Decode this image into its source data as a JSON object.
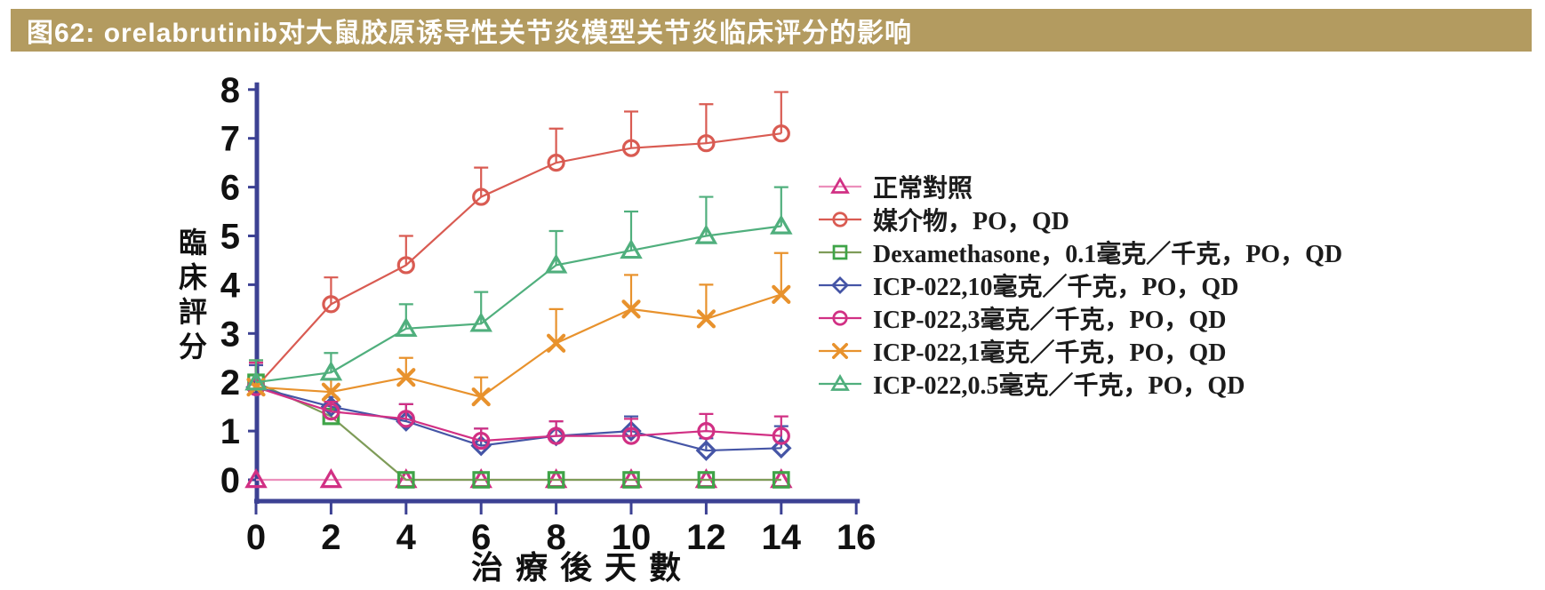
{
  "figure": {
    "title": "图62:  orelabrutinib对大鼠胶原诱导性关节炎模型关节炎临床评分的影响",
    "title_bar_color": "#B39B60",
    "title_text_color": "#FFFFFF"
  },
  "chart_data": {
    "type": "line",
    "x": [
      0,
      2,
      4,
      6,
      8,
      10,
      12,
      14
    ],
    "xlabel": "治療後天數",
    "ylabel": "臨床評分",
    "xlim": [
      0,
      16
    ],
    "ylim": [
      0,
      8
    ],
    "x_ticks": [
      0,
      2,
      4,
      6,
      8,
      10,
      12,
      14,
      16
    ],
    "y_ticks": [
      0,
      1,
      2,
      3,
      4,
      5,
      6,
      7,
      8
    ],
    "grid": false,
    "legend_position": "right",
    "error_bars": "upper-only",
    "axis_color": "#3C4193",
    "tick_label_color": "#111111",
    "series": [
      {
        "name": "正常對照",
        "marker": "triangle-open",
        "color": "#D13084",
        "line_color": "#EC8FBC",
        "values": [
          0,
          0,
          0,
          0,
          0,
          0,
          0,
          0
        ],
        "err_up": [
          0,
          0,
          0,
          0,
          0,
          0,
          0,
          0
        ]
      },
      {
        "name": "媒介物，PO，QD",
        "marker": "circle-open",
        "color": "#D95B52",
        "line_color": "#D95B52",
        "values": [
          1.9,
          3.6,
          4.4,
          5.8,
          6.5,
          6.8,
          6.9,
          7.1
        ],
        "err_up": [
          0.5,
          0.55,
          0.6,
          0.6,
          0.7,
          0.75,
          0.8,
          0.85
        ]
      },
      {
        "name": "Dexamethasone，0.1毫克／千克，PO，QD",
        "marker": "square-open",
        "color": "#3FA448",
        "line_color": "#7E9C58",
        "values": [
          2.0,
          1.3,
          0,
          0,
          0,
          0,
          0,
          0
        ],
        "err_up": [
          0.45,
          0,
          0,
          0,
          0,
          0,
          0,
          0
        ]
      },
      {
        "name": "ICP-022,10毫克／千克，PO，QD",
        "marker": "diamond-open",
        "color": "#4555A6",
        "line_color": "#4555A6",
        "values": [
          1.9,
          1.5,
          1.2,
          0.7,
          0.9,
          1.0,
          0.6,
          0.65
        ],
        "err_up": [
          0.45,
          0.2,
          0.35,
          0.35,
          0.3,
          0.3,
          0.25,
          0.45
        ]
      },
      {
        "name": "ICP-022,3毫克／千克，PO，QD",
        "marker": "circle-open",
        "color": "#D13084",
        "line_color": "#D13084",
        "values": [
          1.9,
          1.4,
          1.25,
          0.8,
          0.9,
          0.9,
          1.0,
          0.9
        ],
        "err_up": [
          0.5,
          0.2,
          0.3,
          0.25,
          0.3,
          0.35,
          0.35,
          0.4
        ]
      },
      {
        "name": "ICP-022,1毫克／千克，PO，QD",
        "marker": "x",
        "color": "#E8922D",
        "line_color": "#E8922D",
        "values": [
          1.9,
          1.8,
          2.1,
          1.7,
          2.8,
          3.5,
          3.3,
          3.8
        ],
        "err_up": [
          0.55,
          0.25,
          0.4,
          0.4,
          0.7,
          0.7,
          0.7,
          0.85
        ]
      },
      {
        "name": "ICP-022,0.5毫克／千克，PO，QD",
        "marker": "triangle-open",
        "color": "#50AF7D",
        "line_color": "#50AF7D",
        "values": [
          2.0,
          2.2,
          3.1,
          3.2,
          4.4,
          4.7,
          5.0,
          5.2
        ],
        "err_up": [
          0.45,
          0.4,
          0.5,
          0.65,
          0.7,
          0.8,
          0.8,
          0.8
        ]
      }
    ]
  }
}
